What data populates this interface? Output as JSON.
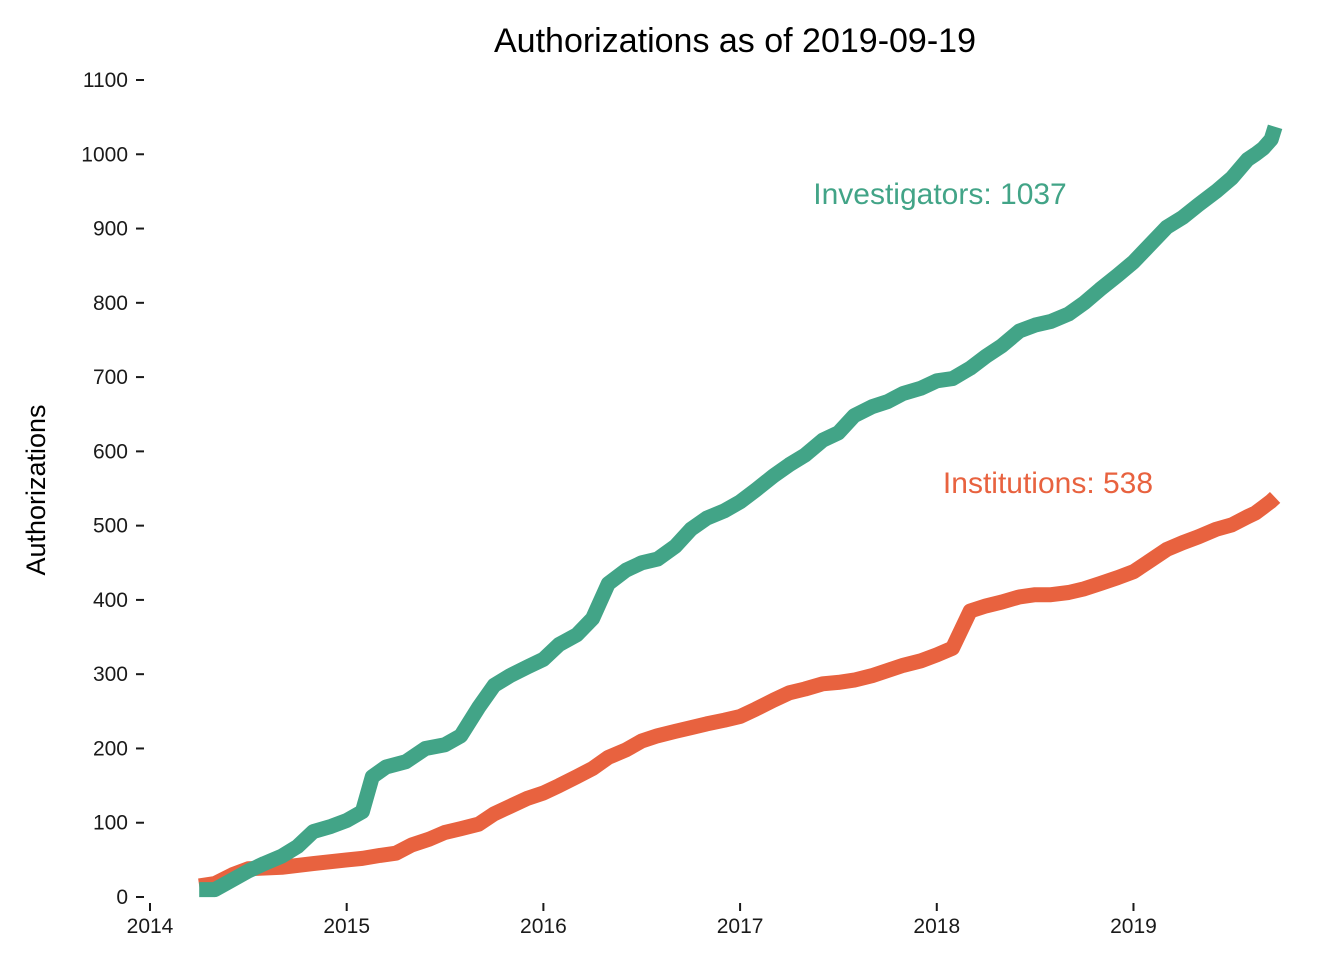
{
  "chart_data": {
    "type": "line",
    "title": "Authorizations as of  2019-09-19",
    "xlabel": "",
    "ylabel": "Authorizations",
    "xlim": [
      2014,
      2019.75
    ],
    "ylim": [
      0,
      1100
    ],
    "x_ticks": [
      2014,
      2015,
      2016,
      2017,
      2018,
      2019
    ],
    "x_tick_labels": [
      "2014",
      "2015",
      "2016",
      "2017",
      "2018",
      "2019"
    ],
    "y_ticks": [
      0,
      100,
      200,
      300,
      400,
      500,
      600,
      700,
      800,
      900,
      1000,
      1100
    ],
    "y_tick_labels": [
      "0",
      "100",
      "200",
      "300",
      "400",
      "500",
      "600",
      "700",
      "800",
      "900",
      "1000",
      "1100"
    ],
    "grid": false,
    "legend": "none",
    "series": [
      {
        "name": "Investigators",
        "color": "#42A487",
        "annotation": "Investigators: 1037",
        "points": [
          [
            2014.25,
            10
          ],
          [
            2014.33,
            10
          ],
          [
            2014.5,
            35
          ],
          [
            2014.58,
            45
          ],
          [
            2014.67,
            55
          ],
          [
            2014.75,
            68
          ],
          [
            2014.83,
            88
          ],
          [
            2014.92,
            95
          ],
          [
            2015.0,
            103
          ],
          [
            2015.08,
            115
          ],
          [
            2015.13,
            162
          ],
          [
            2015.2,
            175
          ],
          [
            2015.3,
            182
          ],
          [
            2015.4,
            200
          ],
          [
            2015.5,
            205
          ],
          [
            2015.58,
            217
          ],
          [
            2015.67,
            255
          ],
          [
            2015.75,
            285
          ],
          [
            2015.83,
            298
          ],
          [
            2015.92,
            310
          ],
          [
            2016.0,
            320
          ],
          [
            2016.08,
            340
          ],
          [
            2016.17,
            353
          ],
          [
            2016.25,
            375
          ],
          [
            2016.33,
            422
          ],
          [
            2016.42,
            440
          ],
          [
            2016.5,
            450
          ],
          [
            2016.58,
            455
          ],
          [
            2016.67,
            472
          ],
          [
            2016.75,
            495
          ],
          [
            2016.83,
            510
          ],
          [
            2016.92,
            520
          ],
          [
            2017.0,
            532
          ],
          [
            2017.08,
            548
          ],
          [
            2017.17,
            567
          ],
          [
            2017.25,
            582
          ],
          [
            2017.33,
            595
          ],
          [
            2017.42,
            615
          ],
          [
            2017.5,
            625
          ],
          [
            2017.58,
            648
          ],
          [
            2017.67,
            660
          ],
          [
            2017.75,
            667
          ],
          [
            2017.83,
            678
          ],
          [
            2017.92,
            685
          ],
          [
            2018.0,
            695
          ],
          [
            2018.08,
            698
          ],
          [
            2018.17,
            712
          ],
          [
            2018.25,
            728
          ],
          [
            2018.33,
            742
          ],
          [
            2018.42,
            762
          ],
          [
            2018.5,
            770
          ],
          [
            2018.58,
            775
          ],
          [
            2018.67,
            785
          ],
          [
            2018.75,
            800
          ],
          [
            2018.83,
            818
          ],
          [
            2018.92,
            837
          ],
          [
            2019.0,
            855
          ],
          [
            2019.08,
            877
          ],
          [
            2019.17,
            902
          ],
          [
            2019.25,
            915
          ],
          [
            2019.33,
            932
          ],
          [
            2019.42,
            950
          ],
          [
            2019.5,
            968
          ],
          [
            2019.58,
            993
          ],
          [
            2019.62,
            1000
          ],
          [
            2019.66,
            1008
          ],
          [
            2019.7,
            1020
          ],
          [
            2019.72,
            1037
          ]
        ]
      },
      {
        "name": "Institutions",
        "color": "#E8623F",
        "annotation": "Institutions: 538",
        "points": [
          [
            2014.25,
            15
          ],
          [
            2014.33,
            18
          ],
          [
            2014.42,
            30
          ],
          [
            2014.5,
            38
          ],
          [
            2014.67,
            40
          ],
          [
            2014.83,
            45
          ],
          [
            2015.0,
            50
          ],
          [
            2015.08,
            52
          ],
          [
            2015.17,
            56
          ],
          [
            2015.25,
            59
          ],
          [
            2015.33,
            70
          ],
          [
            2015.42,
            78
          ],
          [
            2015.5,
            87
          ],
          [
            2015.58,
            92
          ],
          [
            2015.67,
            98
          ],
          [
            2015.75,
            112
          ],
          [
            2015.83,
            122
          ],
          [
            2015.92,
            133
          ],
          [
            2016.0,
            140
          ],
          [
            2016.08,
            150
          ],
          [
            2016.17,
            162
          ],
          [
            2016.25,
            173
          ],
          [
            2016.33,
            188
          ],
          [
            2016.42,
            198
          ],
          [
            2016.5,
            210
          ],
          [
            2016.58,
            217
          ],
          [
            2016.67,
            223
          ],
          [
            2016.75,
            228
          ],
          [
            2016.83,
            233
          ],
          [
            2016.92,
            238
          ],
          [
            2017.0,
            243
          ],
          [
            2017.08,
            253
          ],
          [
            2017.17,
            265
          ],
          [
            2017.25,
            275
          ],
          [
            2017.33,
            280
          ],
          [
            2017.42,
            287
          ],
          [
            2017.5,
            289
          ],
          [
            2017.58,
            292
          ],
          [
            2017.67,
            298
          ],
          [
            2017.75,
            305
          ],
          [
            2017.83,
            312
          ],
          [
            2017.92,
            318
          ],
          [
            2018.0,
            326
          ],
          [
            2018.08,
            335
          ],
          [
            2018.17,
            385
          ],
          [
            2018.25,
            392
          ],
          [
            2018.33,
            397
          ],
          [
            2018.42,
            404
          ],
          [
            2018.5,
            407
          ],
          [
            2018.58,
            407
          ],
          [
            2018.67,
            410
          ],
          [
            2018.75,
            415
          ],
          [
            2018.83,
            422
          ],
          [
            2018.92,
            430
          ],
          [
            2019.0,
            438
          ],
          [
            2019.08,
            452
          ],
          [
            2019.17,
            468
          ],
          [
            2019.25,
            477
          ],
          [
            2019.33,
            485
          ],
          [
            2019.42,
            495
          ],
          [
            2019.5,
            501
          ],
          [
            2019.58,
            512
          ],
          [
            2019.62,
            517
          ],
          [
            2019.66,
            525
          ],
          [
            2019.7,
            533
          ],
          [
            2019.72,
            538
          ]
        ]
      }
    ]
  }
}
